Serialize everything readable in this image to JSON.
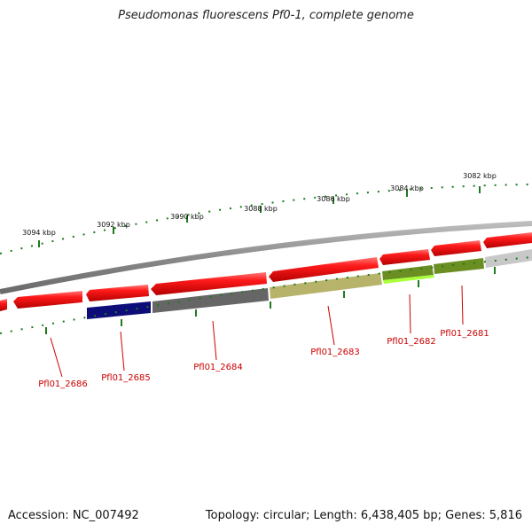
{
  "title": "Pseudomonas fluorescens Pf0-1, complete genome",
  "footer": {
    "accession": "Accession: NC_007492",
    "summary": "Topology: circular; Length: 6,438,405 bp; Genes: 5,816"
  },
  "scale_ticks": [
    "3094 kbp",
    "3092 kbp",
    "3090 kbp",
    "3088 kbp",
    "3086 kbp",
    "3084 kbp",
    "3082 kbp"
  ],
  "gene_labels": [
    "Pfl01_2686",
    "Pfl01_2685",
    "Pfl01_2684",
    "Pfl01_2683",
    "Pfl01_2682",
    "Pfl01_2681"
  ],
  "colors": {
    "forward_gene": "#ff1a1a",
    "backbone": "#8c8c8c",
    "tick": "#1f7a1f",
    "label": "#cc0000",
    "track_navy": "#0d0d7a",
    "track_darkgray": "#666666",
    "track_khaki": "#b8b36a",
    "track_olive": "#6b8e23",
    "track_lime": "#a8ff3a",
    "track_lightgray": "#c8c8c8"
  }
}
